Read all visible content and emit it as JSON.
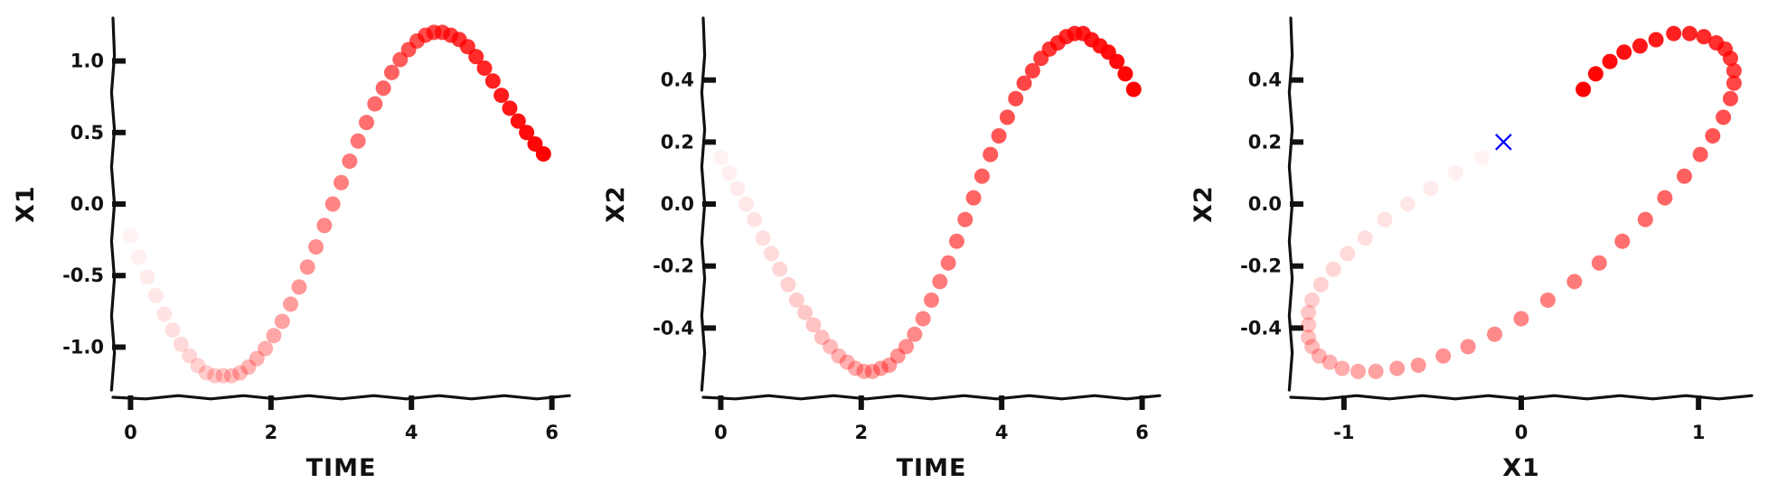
{
  "colors": {
    "point": "#ff0000",
    "marker": "#0000ff",
    "axis": "#111111"
  },
  "chart_data": [
    {
      "type": "scatter",
      "xlabel": "TIME",
      "ylabel": "X1",
      "xlim": [
        -0.25,
        6.25
      ],
      "ylim": [
        -1.3,
        1.3
      ],
      "xticks": [
        0,
        2,
        4,
        6
      ],
      "xtick_labels": [
        "0",
        "2",
        "4",
        "6"
      ],
      "yticks": [
        -1.0,
        -0.5,
        0.0,
        0.5,
        1.0
      ],
      "ytick_labels": [
        "-1.0",
        "-0.5",
        "0.0",
        "0.5",
        "1.0"
      ],
      "series": [
        {
          "opacity_ramp": [
            0.05,
            1
          ],
          "x": [
            0,
            0.12,
            0.24,
            0.36,
            0.48,
            0.6,
            0.72,
            0.84,
            0.96,
            1.08,
            1.2,
            1.32,
            1.44,
            1.56,
            1.68,
            1.8,
            1.92,
            2.04,
            2.16,
            2.28,
            2.4,
            2.52,
            2.64,
            2.76,
            2.88,
            3,
            3.12,
            3.24,
            3.36,
            3.48,
            3.6,
            3.72,
            3.84,
            3.96,
            4.08,
            4.2,
            4.32,
            4.44,
            4.56,
            4.68,
            4.8,
            4.92,
            5.04,
            5.16,
            5.28,
            5.4,
            5.52,
            5.64,
            5.76,
            5.88
          ],
          "y": [
            -0.22,
            -0.37,
            -0.51,
            -0.64,
            -0.77,
            -0.88,
            -0.98,
            -1.06,
            -1.13,
            -1.18,
            -1.2,
            -1.2,
            -1.2,
            -1.18,
            -1.14,
            -1.08,
            -1.01,
            -0.92,
            -0.82,
            -0.7,
            -0.58,
            -0.44,
            -0.3,
            -0.15,
            0.0,
            0.15,
            0.3,
            0.44,
            0.57,
            0.7,
            0.81,
            0.92,
            1.01,
            1.08,
            1.14,
            1.18,
            1.2,
            1.2,
            1.18,
            1.15,
            1.1,
            1.03,
            0.95,
            0.86,
            0.76,
            0.67,
            0.58,
            0.5,
            0.42,
            0.35
          ]
        }
      ]
    },
    {
      "type": "scatter",
      "xlabel": "TIME",
      "ylabel": "X2",
      "xlim": [
        -0.25,
        6.25
      ],
      "ylim": [
        -0.6,
        0.6
      ],
      "xticks": [
        0,
        2,
        4,
        6
      ],
      "xtick_labels": [
        "0",
        "2",
        "4",
        "6"
      ],
      "yticks": [
        -0.4,
        -0.2,
        0.0,
        0.2,
        0.4
      ],
      "ytick_labels": [
        "-0.4",
        "-0.2",
        "0.0",
        "0.2",
        "0.4"
      ],
      "series": [
        {
          "opacity_ramp": [
            0.05,
            1
          ],
          "x": [
            0,
            0.12,
            0.24,
            0.36,
            0.48,
            0.6,
            0.72,
            0.84,
            0.96,
            1.08,
            1.2,
            1.32,
            1.44,
            1.56,
            1.68,
            1.8,
            1.92,
            2.04,
            2.16,
            2.28,
            2.4,
            2.52,
            2.64,
            2.76,
            2.88,
            3,
            3.12,
            3.24,
            3.36,
            3.48,
            3.6,
            3.72,
            3.84,
            3.96,
            4.08,
            4.2,
            4.32,
            4.44,
            4.56,
            4.68,
            4.8,
            4.92,
            5.04,
            5.16,
            5.28,
            5.4,
            5.52,
            5.64,
            5.76,
            5.88
          ],
          "y": [
            0.15,
            0.1,
            0.05,
            0.0,
            -0.05,
            -0.11,
            -0.16,
            -0.21,
            -0.26,
            -0.31,
            -0.35,
            -0.39,
            -0.43,
            -0.46,
            -0.49,
            -0.51,
            -0.53,
            -0.54,
            -0.54,
            -0.53,
            -0.52,
            -0.49,
            -0.46,
            -0.42,
            -0.37,
            -0.31,
            -0.25,
            -0.19,
            -0.12,
            -0.05,
            0.02,
            0.09,
            0.16,
            0.22,
            0.28,
            0.34,
            0.39,
            0.43,
            0.47,
            0.5,
            0.52,
            0.54,
            0.55,
            0.55,
            0.53,
            0.51,
            0.49,
            0.46,
            0.42,
            0.37
          ]
        }
      ]
    },
    {
      "type": "scatter",
      "xlabel": "X1",
      "ylabel": "X2",
      "xlim": [
        -1.3,
        1.3
      ],
      "ylim": [
        -0.6,
        0.6
      ],
      "xticks": [
        -1,
        0,
        1
      ],
      "xtick_labels": [
        "-1",
        "0",
        "1"
      ],
      "yticks": [
        -0.4,
        -0.2,
        0.0,
        0.2,
        0.4
      ],
      "ytick_labels": [
        "-0.4",
        "-0.2",
        "0.0",
        "0.2",
        "0.4"
      ],
      "series": [
        {
          "opacity_ramp": [
            0.05,
            1
          ],
          "x": [
            -0.22,
            -0.37,
            -0.51,
            -0.64,
            -0.77,
            -0.88,
            -0.98,
            -1.06,
            -1.13,
            -1.18,
            -1.2,
            -1.2,
            -1.2,
            -1.18,
            -1.14,
            -1.08,
            -1.01,
            -0.92,
            -0.82,
            -0.7,
            -0.58,
            -0.44,
            -0.3,
            -0.15,
            0.0,
            0.15,
            0.3,
            0.44,
            0.57,
            0.7,
            0.81,
            0.92,
            1.01,
            1.08,
            1.14,
            1.18,
            1.2,
            1.2,
            1.18,
            1.15,
            1.1,
            1.03,
            0.95,
            0.86,
            0.76,
            0.67,
            0.58,
            0.5,
            0.42,
            0.35
          ],
          "y": [
            0.15,
            0.1,
            0.05,
            0.0,
            -0.05,
            -0.11,
            -0.16,
            -0.21,
            -0.26,
            -0.31,
            -0.35,
            -0.39,
            -0.43,
            -0.46,
            -0.49,
            -0.51,
            -0.53,
            -0.54,
            -0.54,
            -0.53,
            -0.52,
            -0.49,
            -0.46,
            -0.42,
            -0.37,
            -0.31,
            -0.25,
            -0.19,
            -0.12,
            -0.05,
            0.02,
            0.09,
            0.16,
            0.22,
            0.28,
            0.34,
            0.39,
            0.43,
            0.47,
            0.5,
            0.52,
            0.54,
            0.55,
            0.55,
            0.53,
            0.51,
            0.49,
            0.46,
            0.42,
            0.37
          ]
        }
      ],
      "marker": {
        "shape": "x",
        "x": -0.1,
        "y": 0.2
      }
    }
  ]
}
